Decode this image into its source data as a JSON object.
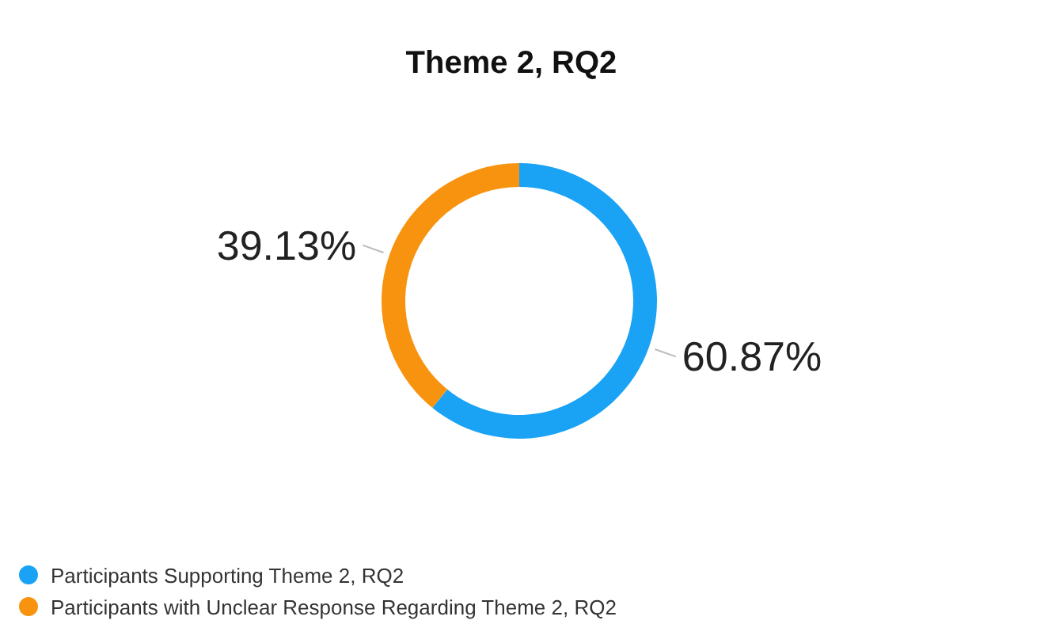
{
  "chart_data": {
    "type": "donut",
    "title": "Theme 2, RQ2",
    "categories": [
      "Participants Supporting Theme 2, RQ2",
      "Participants with Unclear Response Regarding Theme 2, RQ2"
    ],
    "values": [
      60.87,
      39.13
    ],
    "colors": [
      "#1aa3f5",
      "#f7930f"
    ],
    "value_labels": [
      "60.87%",
      "39.13%"
    ],
    "legend": "bottom left"
  }
}
